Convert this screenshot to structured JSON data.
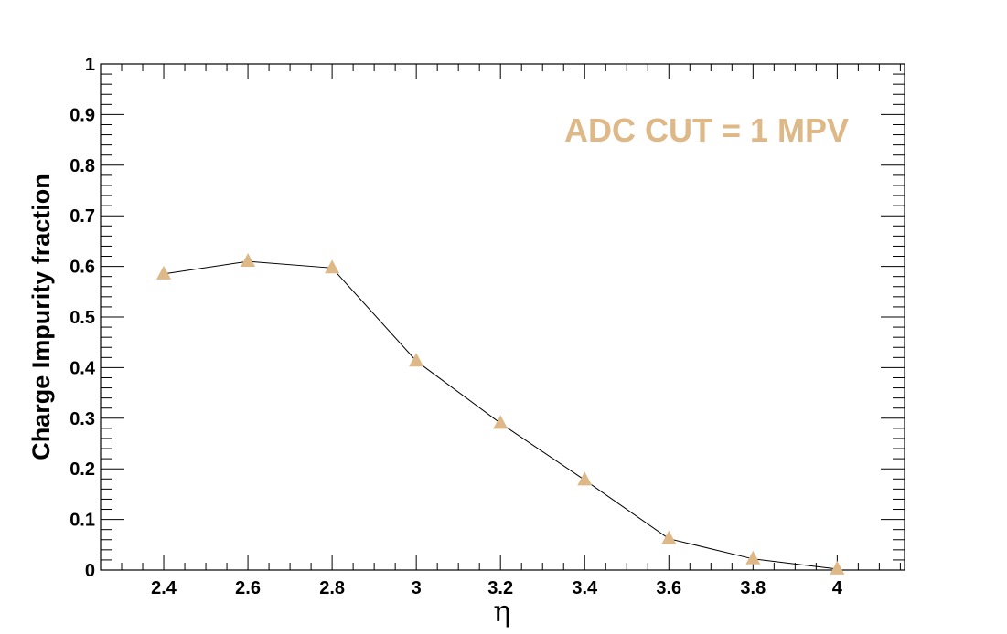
{
  "chart_data": {
    "type": "line",
    "title": "",
    "xlabel": "η",
    "ylabel": "Charge Impurity fraction",
    "xlim": [
      2.25,
      4.16
    ],
    "ylim": [
      0,
      1
    ],
    "x_ticks": [
      "2.4",
      "2.6",
      "2.8",
      "3",
      "3.2",
      "3.4",
      "3.6",
      "3.8",
      "4"
    ],
    "y_ticks": [
      "0",
      "0.1",
      "0.2",
      "0.3",
      "0.4",
      "0.5",
      "0.6",
      "0.7",
      "0.8",
      "0.9",
      "1"
    ],
    "grid": false,
    "annotation": "ADC CUT = 1 MPV",
    "marker": "triangle",
    "colors": {
      "marker": "#DEB887",
      "line": "#000000",
      "annotation": "#DEB887"
    },
    "series": [
      {
        "x": [
          2.4,
          2.6,
          2.8,
          3.0,
          3.2,
          3.4,
          3.6,
          3.8,
          4.0
        ],
        "y": [
          0.585,
          0.61,
          0.597,
          0.413,
          0.29,
          0.178,
          0.062,
          0.022,
          0.002
        ]
      }
    ]
  }
}
